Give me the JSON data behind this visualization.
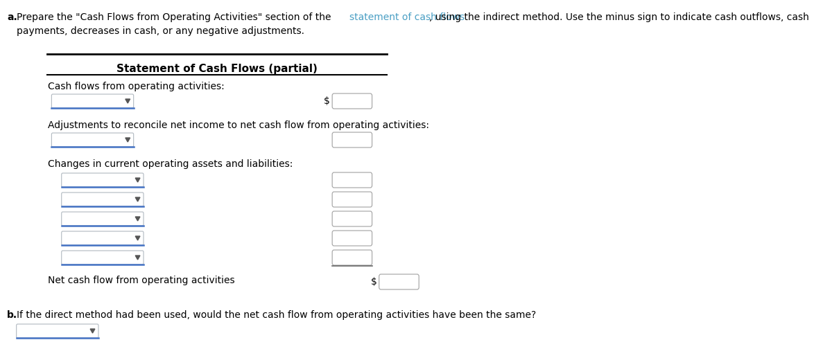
{
  "bg_color": "#ffffff",
  "text_color": "#000000",
  "link_color": "#4a9fc4",
  "blue_underline": "#4472c4",
  "table_title": "Statement of Cash Flows (partial)",
  "row1_label": "Cash flows from operating activities:",
  "row2_label": "Adjustments to reconcile net income to net cash flow from operating activities:",
  "row3_label": "Changes in current operating assets and liabilities:",
  "row_net": "Net cash flow from operating activities",
  "part_b_q": "If the direct method had been used, would the net cash flow from operating activities have been the same?",
  "num_change_rows": 5,
  "fs_body": 10,
  "fs_title": 11
}
